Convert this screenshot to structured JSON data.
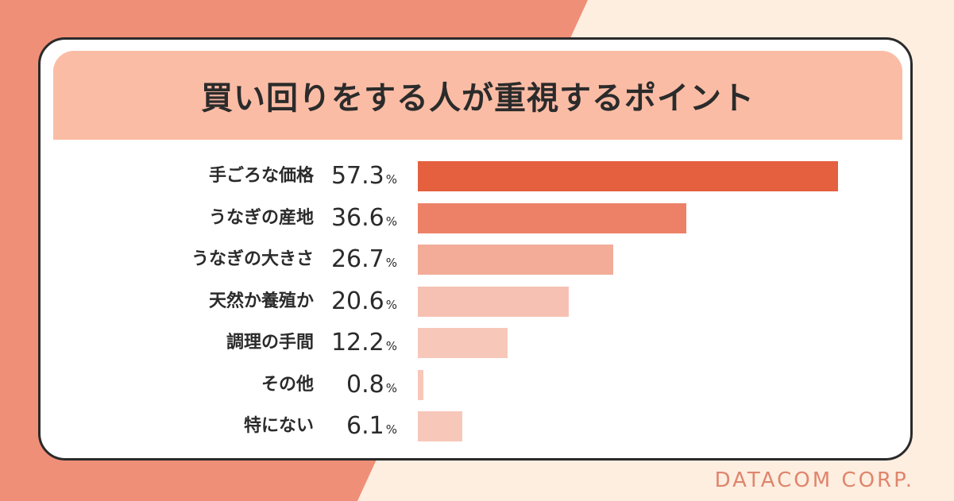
{
  "title": "買い回りをする人が重視するポイント",
  "footer": "DATACOM CORP.",
  "colors": [
    "#e5603f",
    "#ec8167",
    "#f2ac98",
    "#f6c1b2",
    "#f7c7ba",
    "#f7c7ba",
    "#f7c7ba"
  ],
  "chart_data": {
    "type": "bar",
    "orientation": "horizontal",
    "unit": "%",
    "xlim": [
      0,
      60
    ],
    "categories": [
      "手ごろな価格",
      "うなぎの産地",
      "うなぎの大きさ",
      "天然か養殖か",
      "調理の手間",
      "その他",
      "特にない"
    ],
    "values": [
      57.3,
      36.6,
      26.7,
      20.6,
      12.2,
      0.8,
      6.1
    ]
  }
}
